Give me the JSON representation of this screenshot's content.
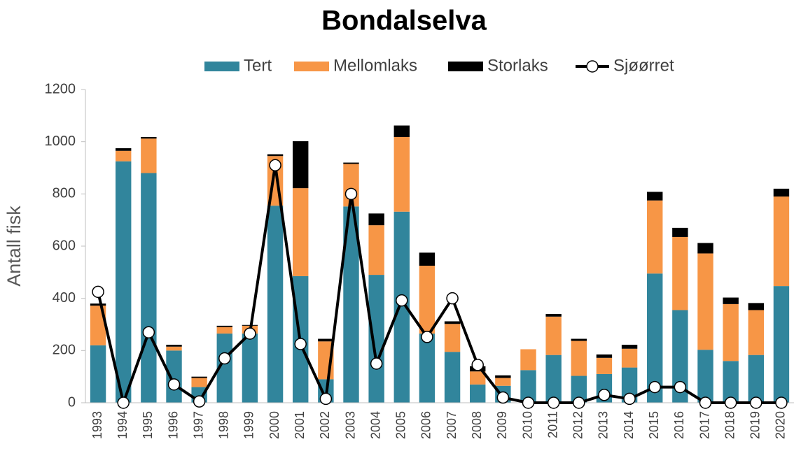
{
  "chart_data": {
    "type": "bar",
    "stacked": true,
    "title": "Bondalselva",
    "y_label": "Antall fisk",
    "categories": [
      "1993",
      "1994",
      "1995",
      "1996",
      "1997",
      "1998",
      "1999",
      "2000",
      "2001",
      "2002",
      "2003",
      "2004",
      "2005",
      "2006",
      "2007",
      "2008",
      "2009",
      "2010",
      "2011",
      "2012",
      "2013",
      "2014",
      "2015",
      "2016",
      "2017",
      "2018",
      "2019",
      "2020"
    ],
    "series": [
      {
        "name": "Tert",
        "type": "bar",
        "color": "#31859c",
        "values": [
          220,
          925,
          880,
          200,
          60,
          265,
          265,
          755,
          485,
          90,
          752,
          490,
          732,
          265,
          195,
          70,
          65,
          125,
          183,
          103,
          110,
          135,
          495,
          355,
          203,
          160,
          183,
          447
        ]
      },
      {
        "name": "Mellomlaks",
        "type": "bar",
        "color": "#f79646",
        "values": [
          152,
          40,
          132,
          15,
          35,
          25,
          30,
          190,
          337,
          145,
          163,
          190,
          286,
          260,
          107,
          50,
          30,
          80,
          147,
          134,
          62,
          72,
          280,
          280,
          369,
          218,
          172,
          343
        ]
      },
      {
        "name": "Storlaks",
        "type": "bar",
        "color": "#000000",
        "values": [
          8,
          10,
          6,
          7,
          5,
          5,
          3,
          7,
          180,
          10,
          5,
          45,
          44,
          50,
          10,
          20,
          10,
          0,
          10,
          8,
          13,
          15,
          33,
          35,
          40,
          25,
          27,
          30
        ]
      },
      {
        "name": "Sjøørret",
        "type": "line",
        "color": "#000000",
        "values": [
          425,
          0,
          270,
          70,
          5,
          170,
          265,
          910,
          225,
          15,
          800,
          150,
          392,
          252,
          400,
          145,
          20,
          0,
          0,
          0,
          30,
          15,
          60,
          60,
          0,
          0,
          0,
          0
        ]
      }
    ],
    "ylim": [
      0,
      1200
    ],
    "yticks": [
      0,
      200,
      400,
      600,
      800,
      1000,
      1200
    ],
    "grid": false,
    "legend": "top"
  }
}
